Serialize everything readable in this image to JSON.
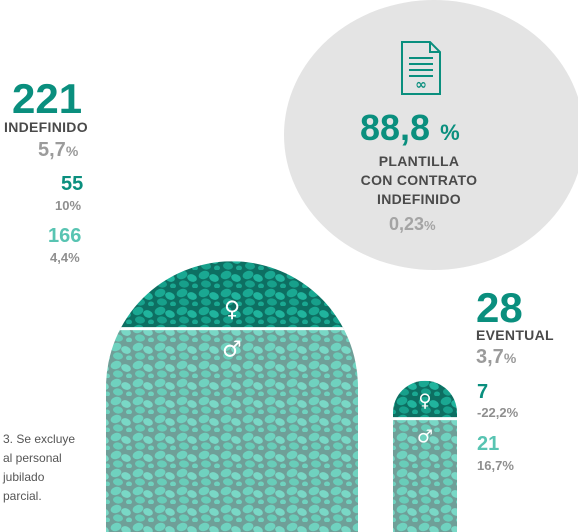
{
  "summary": {
    "percentage": "88,8",
    "percentage_unit": "%",
    "label_line1": "PLANTILLA",
    "label_line2": "CON CONTRATO",
    "label_line3": "INDEFINIDO",
    "variation": "0,23",
    "variation_unit": "%",
    "icon": "contract-document-icon"
  },
  "indefinido": {
    "total": "221",
    "label": "INDEFINIDO",
    "variation": "5,7",
    "variation_unit": "%",
    "women": "55",
    "women_variation": "10",
    "men": "166",
    "men_variation": "4,4",
    "pct_unit": "%"
  },
  "eventual": {
    "total": "28",
    "label": "EVENTUAL",
    "variation": "3,7",
    "variation_unit": "%",
    "women": "7",
    "women_variation": "-22,2",
    "men": "21",
    "men_variation": "16,7",
    "pct_unit": "%"
  },
  "symbols": {
    "female": "♀",
    "male": "♂"
  },
  "footnote": [
    "3. Se excluye",
    "al personal",
    "jubilado",
    "parcial."
  ],
  "colors": {
    "dark_teal": "#0a8f7e",
    "light_teal": "#58c4b2",
    "grey": "#9b9b9b",
    "circle": "#e4e4e4"
  },
  "chart_data": {
    "type": "bar",
    "categories": [
      "INDEFINIDO",
      "EVENTUAL"
    ],
    "series": [
      {
        "name": "♀",
        "values": [
          55,
          7
        ]
      },
      {
        "name": "♂",
        "values": [
          166,
          21
        ]
      }
    ],
    "totals": [
      221,
      28
    ],
    "variation_pct": [
      5.7,
      3.7
    ],
    "women_variation_pct": [
      10,
      -22.2
    ],
    "men_variation_pct": [
      4.4,
      16.7
    ]
  }
}
